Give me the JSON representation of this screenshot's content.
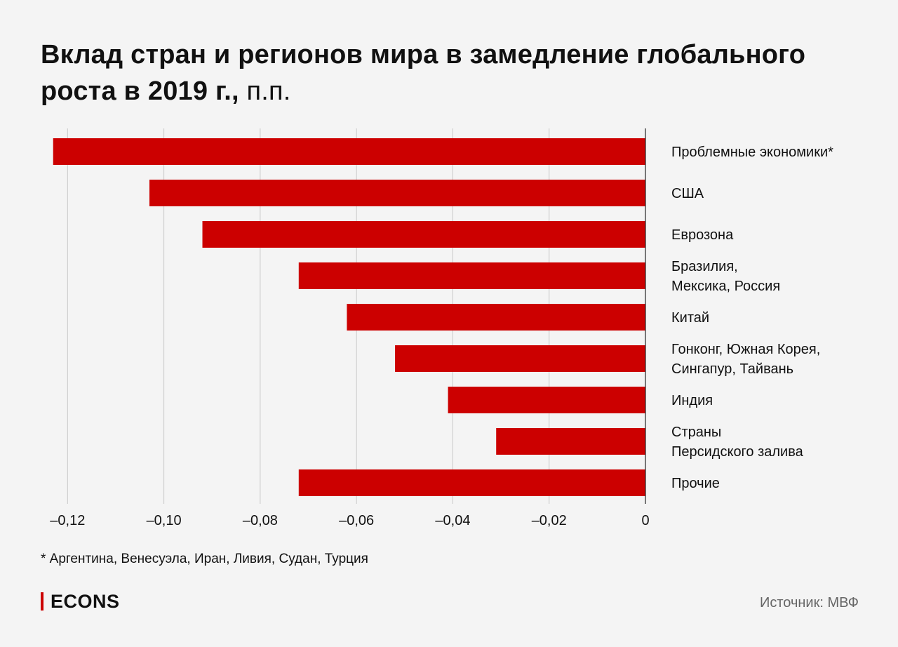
{
  "title": {
    "main": "Вклад стран и регионов мира в замедление глобального роста в 2019 г.,",
    "unit": "п.п."
  },
  "chart_data": {
    "type": "bar",
    "orientation": "horizontal",
    "categories": [
      "Проблемные экономики*",
      "США",
      "Еврозона",
      "Бразилия,\nМексика, Россия",
      "Китай",
      "Гонконг, Южная Корея,\nСингапур, Тайвань",
      "Индия",
      "Страны\nПерсидского залива",
      "Прочие"
    ],
    "values": [
      -0.123,
      -0.103,
      -0.092,
      -0.072,
      -0.062,
      -0.052,
      -0.041,
      -0.031,
      -0.072
    ],
    "xlim": [
      -0.125,
      0
    ],
    "xticks": [
      -0.12,
      -0.1,
      -0.08,
      -0.06,
      -0.04,
      -0.02,
      0
    ],
    "xtick_labels": [
      "–0,12",
      "–0,10",
      "–0,08",
      "–0,06",
      "–0,04",
      "–0,02",
      "0"
    ],
    "grid": true,
    "bar_color": "#cc0000",
    "grid_color": "#c8c8c8"
  },
  "footnote": "* Аргентина, Венесуэла, Иран, Ливия, Судан, Турция",
  "logo": {
    "text": "ECONS",
    "accent": "#cc0000"
  },
  "source": "Источник: МВФ"
}
